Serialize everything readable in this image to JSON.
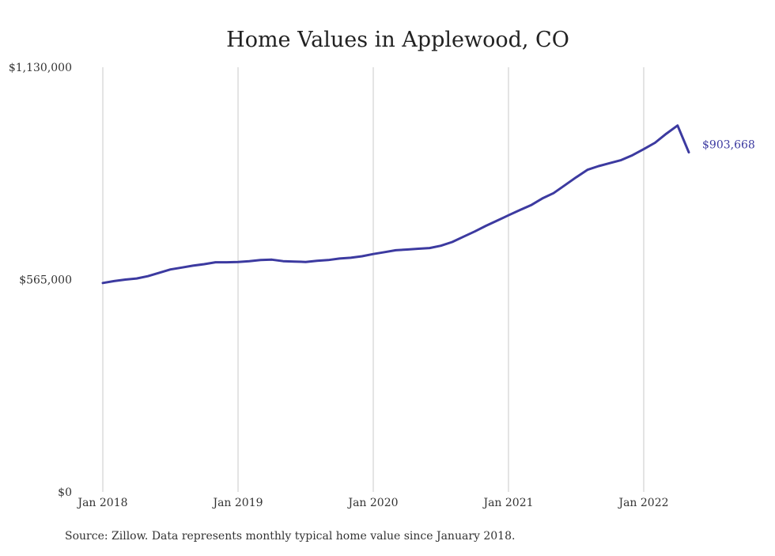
{
  "chart_data": {
    "type": "line",
    "title": "Home Values in Applewood, CO",
    "xlabel": "",
    "ylabel": "",
    "ylim": [
      0,
      1130000
    ],
    "xlim": [
      "2018-01",
      "2022-05"
    ],
    "y_ticks": [
      0,
      565000,
      1130000
    ],
    "y_tick_labels": [
      "$0",
      "$565,000",
      "$1,130,000"
    ],
    "x_ticks": [
      "2018-01",
      "2019-01",
      "2020-01",
      "2021-01",
      "2022-01"
    ],
    "x_tick_labels": [
      "Jan 2018",
      "Jan 2019",
      "Jan 2020",
      "Jan 2021",
      "Jan 2022"
    ],
    "grid": {
      "vertical": true,
      "horizontal": false
    },
    "legend": "none",
    "series": [
      {
        "color": "#3c3aa0",
        "end_label": "$903,668",
        "x": [
          "2018-01",
          "2018-02",
          "2018-03",
          "2018-04",
          "2018-05",
          "2018-06",
          "2018-07",
          "2018-08",
          "2018-09",
          "2018-10",
          "2018-11",
          "2018-12",
          "2019-01",
          "2019-02",
          "2019-03",
          "2019-04",
          "2019-05",
          "2019-06",
          "2019-07",
          "2019-08",
          "2019-09",
          "2019-10",
          "2019-11",
          "2019-12",
          "2020-01",
          "2020-02",
          "2020-03",
          "2020-04",
          "2020-05",
          "2020-06",
          "2020-07",
          "2020-08",
          "2020-09",
          "2020-10",
          "2020-11",
          "2020-12",
          "2021-01",
          "2021-02",
          "2021-03",
          "2021-04",
          "2021-05",
          "2021-06",
          "2021-07",
          "2021-08",
          "2021-09",
          "2021-10",
          "2021-11",
          "2021-12",
          "2022-01",
          "2022-02",
          "2022-03",
          "2022-04",
          "2022-05"
        ],
        "values": [
          556000,
          561000,
          565000,
          568000,
          574000,
          583000,
          592000,
          597000,
          602000,
          606000,
          611000,
          611000,
          612000,
          614000,
          617000,
          618000,
          614000,
          613000,
          612000,
          615000,
          617000,
          621000,
          623000,
          627000,
          633000,
          638000,
          643000,
          645000,
          647000,
          649000,
          655000,
          665000,
          679000,
          693000,
          708000,
          722000,
          736000,
          750000,
          763000,
          781000,
          795000,
          816000,
          837000,
          857000,
          867000,
          875000,
          883000,
          896000,
          912000,
          929000,
          953000,
          975000,
          903668
        ]
      }
    ],
    "source_note": "Source: Zillow. Data represents monthly typical home value since January 2018."
  }
}
